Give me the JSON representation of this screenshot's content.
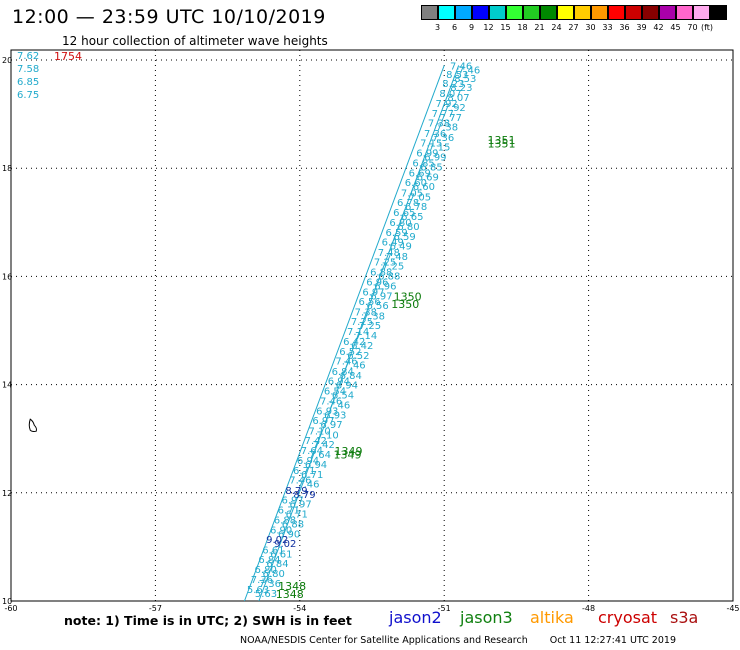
{
  "header": {
    "title": "12:00 — 23:59 UTC 10/10/2019",
    "subtitle": "12 hour collection of altimeter wave heights"
  },
  "legend": {
    "colors": [
      "#808080",
      "#00ffff",
      "#00aaff",
      "#0000ff",
      "#00cccc",
      "#33ff33",
      "#22cc22",
      "#008800",
      "#ffff00",
      "#ffcc00",
      "#ff9900",
      "#ff0000",
      "#cc0000",
      "#880000",
      "#aa00aa",
      "#ff66cc",
      "#ffaaee",
      "#000000"
    ],
    "labels": [
      "3",
      "6",
      "9",
      "12",
      "15",
      "18",
      "21",
      "24",
      "27",
      "30",
      "33",
      "36",
      "39",
      "42",
      "45",
      "70"
    ],
    "unit": "(ft)"
  },
  "map": {
    "lon_ticks": [
      "-60",
      "-57",
      "-54",
      "-51",
      "-48",
      "-45"
    ],
    "lat_ticks": [
      "20",
      "18",
      "16",
      "14",
      "12",
      "10"
    ],
    "lon_range": [
      -60,
      -45
    ],
    "lat_range": [
      10,
      20
    ],
    "corner_values": [
      "7.62",
      "7.58",
      "6.85",
      "6.75"
    ],
    "corner_red_time": "1754",
    "track_colors": {
      "swh": "#22aacc",
      "swh_dark": "#1030a0",
      "time": "#0a7a0a"
    },
    "tracks": [
      {
        "start": [
          -55.15,
          10.0
        ],
        "end": [
          -51.0,
          19.9
        ]
      },
      {
        "start": [
          -54.85,
          10.0
        ],
        "end": [
          -50.7,
          19.9
        ]
      }
    ],
    "swh_labels": [
      {
        "lon": -50.88,
        "lat": 19.82,
        "v": "7.46"
      },
      {
        "lon": -50.96,
        "lat": 19.67,
        "v": "8.53"
      },
      {
        "lon": -51.04,
        "lat": 19.5,
        "v": "8.23"
      },
      {
        "lon": -51.1,
        "lat": 19.32,
        "v": "8.07"
      },
      {
        "lon": -51.18,
        "lat": 19.13,
        "v": "7.92"
      },
      {
        "lon": -51.26,
        "lat": 18.95,
        "v": "7.77"
      },
      {
        "lon": -51.34,
        "lat": 18.77,
        "v": "7.38"
      },
      {
        "lon": -51.42,
        "lat": 18.58,
        "v": "7.36"
      },
      {
        "lon": -51.5,
        "lat": 18.4,
        "v": "7.15"
      },
      {
        "lon": -51.58,
        "lat": 18.22,
        "v": "6.99"
      },
      {
        "lon": -51.66,
        "lat": 18.03,
        "v": "6.85"
      },
      {
        "lon": -51.74,
        "lat": 17.85,
        "v": "6.69"
      },
      {
        "lon": -51.82,
        "lat": 17.67,
        "v": "6.60"
      },
      {
        "lon": -51.9,
        "lat": 17.48,
        "v": "7.05"
      },
      {
        "lon": -51.98,
        "lat": 17.3,
        "v": "6.78"
      },
      {
        "lon": -52.06,
        "lat": 17.12,
        "v": "6.65"
      },
      {
        "lon": -52.14,
        "lat": 16.93,
        "v": "6.80"
      },
      {
        "lon": -52.22,
        "lat": 16.75,
        "v": "6.59"
      },
      {
        "lon": -52.3,
        "lat": 16.57,
        "v": "6.49"
      },
      {
        "lon": -52.38,
        "lat": 16.38,
        "v": "7.48"
      },
      {
        "lon": -52.46,
        "lat": 16.2,
        "v": "7.25"
      },
      {
        "lon": -52.54,
        "lat": 16.02,
        "v": "6.88"
      },
      {
        "lon": -52.62,
        "lat": 15.83,
        "v": "6.96"
      },
      {
        "lon": -52.7,
        "lat": 15.65,
        "v": "6.97"
      },
      {
        "lon": -52.78,
        "lat": 15.47,
        "v": "6.56"
      },
      {
        "lon": -52.86,
        "lat": 15.28,
        "v": "7.38"
      },
      {
        "lon": -52.94,
        "lat": 15.1,
        "v": "7.25"
      },
      {
        "lon": -53.02,
        "lat": 14.92,
        "v": "7.14"
      },
      {
        "lon": -53.1,
        "lat": 14.73,
        "v": "6.42"
      },
      {
        "lon": -53.18,
        "lat": 14.55,
        "v": "6.52"
      },
      {
        "lon": -53.26,
        "lat": 14.37,
        "v": "7.46"
      },
      {
        "lon": -53.34,
        "lat": 14.18,
        "v": "6.84"
      },
      {
        "lon": -53.42,
        "lat": 14.0,
        "v": "6.94"
      },
      {
        "lon": -53.5,
        "lat": 13.82,
        "v": "6.54"
      },
      {
        "lon": -53.58,
        "lat": 13.63,
        "v": "7.46"
      },
      {
        "lon": -53.66,
        "lat": 13.45,
        "v": "6.93"
      },
      {
        "lon": -53.74,
        "lat": 13.27,
        "v": "6.97"
      },
      {
        "lon": -53.82,
        "lat": 13.08,
        "v": "7.10"
      },
      {
        "lon": -53.9,
        "lat": 12.9,
        "v": "7.42"
      },
      {
        "lon": -53.98,
        "lat": 12.72,
        "v": "7.64"
      },
      {
        "lon": -54.06,
        "lat": 12.53,
        "v": "6.94"
      },
      {
        "lon": -54.14,
        "lat": 12.35,
        "v": "6.71"
      },
      {
        "lon": -54.22,
        "lat": 12.17,
        "v": "7.46"
      },
      {
        "lon": -54.3,
        "lat": 11.98,
        "v": "8.79",
        "dark": true
      },
      {
        "lon": -54.38,
        "lat": 11.8,
        "v": "6.97"
      },
      {
        "lon": -54.46,
        "lat": 11.62,
        "v": "6.71"
      },
      {
        "lon": -54.54,
        "lat": 11.43,
        "v": "6.88"
      },
      {
        "lon": -54.62,
        "lat": 11.25,
        "v": "6.90"
      },
      {
        "lon": -54.7,
        "lat": 11.07,
        "v": "9.02",
        "dark": true
      },
      {
        "lon": -54.78,
        "lat": 10.88,
        "v": "6.61"
      },
      {
        "lon": -54.86,
        "lat": 10.7,
        "v": "6.84"
      },
      {
        "lon": -54.94,
        "lat": 10.52,
        "v": "6.80"
      },
      {
        "lon": -55.02,
        "lat": 10.33,
        "v": "7.36"
      },
      {
        "lon": -55.1,
        "lat": 10.15,
        "v": "5.63"
      }
    ],
    "time_labels": [
      {
        "lon": -50.1,
        "lat": 18.45,
        "v": "1351"
      },
      {
        "lon": -50.1,
        "lat": 18.38,
        "v": "1351"
      },
      {
        "lon": -52.05,
        "lat": 15.55,
        "v": "1350"
      },
      {
        "lon": -52.1,
        "lat": 15.42,
        "v": "1350"
      },
      {
        "lon": -53.28,
        "lat": 12.7,
        "v": "1349"
      },
      {
        "lon": -53.3,
        "lat": 12.63,
        "v": "1349"
      },
      {
        "lon": -54.45,
        "lat": 10.2,
        "v": "1348"
      },
      {
        "lon": -54.5,
        "lat": 10.06,
        "v": "1348"
      }
    ],
    "island_label": "coast"
  },
  "footer": {
    "note": "note: 1) Time is in UTC; 2) SWH is in feet",
    "missions": [
      {
        "name": "jason2",
        "color": "#1010cc"
      },
      {
        "name": "jason3",
        "color": "#108010"
      },
      {
        "name": "altika",
        "color": "#ff9900"
      },
      {
        "name": "cryosat",
        "color": "#cc0000"
      },
      {
        "name": "s3a",
        "color": "#aa1010"
      }
    ],
    "credit": "NOAA/NESDIS Center for Satellite Applications and Research",
    "timestamp": "Oct 11 12:27:41 UTC 2019"
  }
}
